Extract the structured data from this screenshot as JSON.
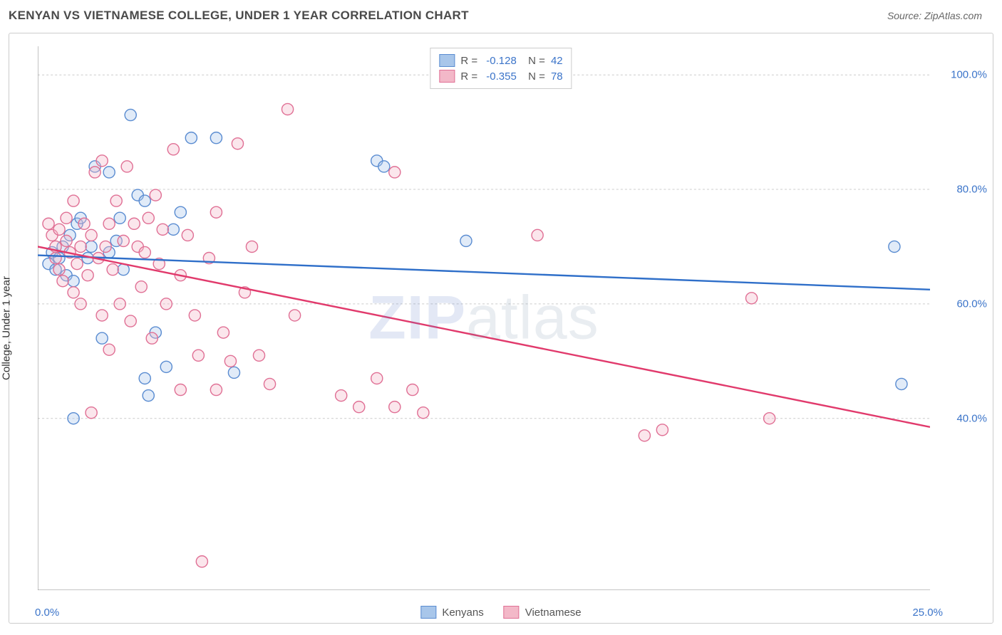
{
  "header": {
    "title": "KENYAN VS VIETNAMESE COLLEGE, UNDER 1 YEAR CORRELATION CHART",
    "source": "Source: ZipAtlas.com"
  },
  "chart": {
    "type": "scatter",
    "ylabel": "College, Under 1 year",
    "watermark": {
      "bold": "ZIP",
      "rest": "atlas"
    },
    "background_color": "#ffffff",
    "grid_color": "#cccccc",
    "axis_color": "#888888",
    "tick_label_color": "#3b74c9",
    "xlim": [
      0,
      25
    ],
    "ylim": [
      10,
      105
    ],
    "x_ticks": [
      0,
      3.57,
      7.14,
      10.71,
      14.29,
      17.86,
      21.43,
      25
    ],
    "x_tick_labels_shown": {
      "0": "0.0%",
      "25": "25.0%"
    },
    "y_gridlines": [
      40,
      60,
      80,
      100
    ],
    "y_tick_labels": {
      "40": "40.0%",
      "60": "60.0%",
      "80": "80.0%",
      "100": "100.0%"
    },
    "marker_radius": 8,
    "line_width": 2.4,
    "series": [
      {
        "name": "Kenyans",
        "color_fill": "#a8c6ea",
        "color_stroke": "#5a8cd1",
        "R": "-0.128",
        "N": "42",
        "trend": {
          "x1": 0,
          "y1": 68.5,
          "x2": 25,
          "y2": 62.5,
          "color": "#2f6fc9"
        },
        "points": [
          [
            0.3,
            67
          ],
          [
            0.4,
            69
          ],
          [
            0.5,
            66
          ],
          [
            0.6,
            68
          ],
          [
            0.7,
            70
          ],
          [
            0.8,
            65
          ],
          [
            0.9,
            72
          ],
          [
            1.0,
            40
          ],
          [
            1.0,
            64
          ],
          [
            1.1,
            74
          ],
          [
            1.2,
            75
          ],
          [
            1.4,
            68
          ],
          [
            1.5,
            70
          ],
          [
            1.6,
            84
          ],
          [
            1.8,
            54
          ],
          [
            2.0,
            69
          ],
          [
            2.0,
            83
          ],
          [
            2.2,
            71
          ],
          [
            2.3,
            75
          ],
          [
            2.4,
            66
          ],
          [
            2.6,
            93
          ],
          [
            2.8,
            79
          ],
          [
            3.0,
            47
          ],
          [
            3.0,
            78
          ],
          [
            3.1,
            44
          ],
          [
            3.3,
            55
          ],
          [
            3.6,
            49
          ],
          [
            3.8,
            73
          ],
          [
            4.0,
            76
          ],
          [
            4.3,
            89
          ],
          [
            5.0,
            89
          ],
          [
            5.5,
            48
          ],
          [
            9.5,
            85
          ],
          [
            9.7,
            84
          ],
          [
            12.0,
            71
          ],
          [
            24.0,
            70
          ],
          [
            24.2,
            46
          ]
        ]
      },
      {
        "name": "Vietnamese",
        "color_fill": "#f3b8c8",
        "color_stroke": "#e07095",
        "R": "-0.355",
        "N": "78",
        "trend": {
          "x1": 0,
          "y1": 70.0,
          "x2": 25,
          "y2": 38.5,
          "color": "#e13a6c"
        },
        "points": [
          [
            0.3,
            74
          ],
          [
            0.4,
            72
          ],
          [
            0.5,
            70
          ],
          [
            0.5,
            68
          ],
          [
            0.6,
            66
          ],
          [
            0.6,
            73
          ],
          [
            0.7,
            64
          ],
          [
            0.8,
            71
          ],
          [
            0.8,
            75
          ],
          [
            0.9,
            69
          ],
          [
            1.0,
            78
          ],
          [
            1.0,
            62
          ],
          [
            1.1,
            67
          ],
          [
            1.2,
            70
          ],
          [
            1.2,
            60
          ],
          [
            1.3,
            74
          ],
          [
            1.4,
            65
          ],
          [
            1.5,
            72
          ],
          [
            1.5,
            41
          ],
          [
            1.6,
            83
          ],
          [
            1.7,
            68
          ],
          [
            1.8,
            85
          ],
          [
            1.8,
            58
          ],
          [
            1.9,
            70
          ],
          [
            2.0,
            74
          ],
          [
            2.0,
            52
          ],
          [
            2.1,
            66
          ],
          [
            2.2,
            78
          ],
          [
            2.3,
            60
          ],
          [
            2.4,
            71
          ],
          [
            2.5,
            84
          ],
          [
            2.6,
            57
          ],
          [
            2.7,
            74
          ],
          [
            2.8,
            70
          ],
          [
            2.9,
            63
          ],
          [
            3.0,
            69
          ],
          [
            3.1,
            75
          ],
          [
            3.2,
            54
          ],
          [
            3.3,
            79
          ],
          [
            3.4,
            67
          ],
          [
            3.5,
            73
          ],
          [
            3.6,
            60
          ],
          [
            3.8,
            87
          ],
          [
            4.0,
            45
          ],
          [
            4.0,
            65
          ],
          [
            4.2,
            72
          ],
          [
            4.4,
            58
          ],
          [
            4.5,
            51
          ],
          [
            4.6,
            15
          ],
          [
            4.8,
            68
          ],
          [
            5.0,
            45
          ],
          [
            5.0,
            76
          ],
          [
            5.2,
            55
          ],
          [
            5.4,
            50
          ],
          [
            5.6,
            88
          ],
          [
            5.8,
            62
          ],
          [
            6.0,
            70
          ],
          [
            6.2,
            51
          ],
          [
            6.5,
            46
          ],
          [
            7.0,
            94
          ],
          [
            7.2,
            58
          ],
          [
            8.5,
            44
          ],
          [
            9.0,
            42
          ],
          [
            9.5,
            47
          ],
          [
            10.0,
            83
          ],
          [
            10.0,
            42
          ],
          [
            10.5,
            45
          ],
          [
            10.8,
            41
          ],
          [
            14.0,
            72
          ],
          [
            17.0,
            37
          ],
          [
            17.5,
            38
          ],
          [
            20.0,
            61
          ],
          [
            20.5,
            40
          ]
        ]
      }
    ],
    "bottom_legend": [
      {
        "label": "Kenyans",
        "fill": "#a8c6ea",
        "stroke": "#5a8cd1"
      },
      {
        "label": "Vietnamese",
        "fill": "#f3b8c8",
        "stroke": "#e07095"
      }
    ]
  }
}
